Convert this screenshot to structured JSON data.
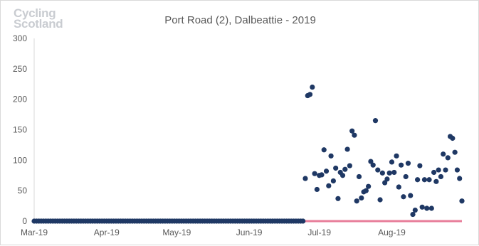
{
  "brand": {
    "line1": "Cycling",
    "line2": "Scotland"
  },
  "chart_data": {
    "type": "scatter",
    "title": "Port Road (2), Dalbeattie - 2019",
    "xlabel": "",
    "ylabel": "",
    "ylim": [
      0,
      300
    ],
    "yticks": [
      0,
      50,
      100,
      150,
      200,
      250,
      300
    ],
    "xlim": [
      "2019-03-01",
      "2019-08-31"
    ],
    "xticks": [
      {
        "date": "2019-03-01",
        "label": "Mar-19"
      },
      {
        "date": "2019-04-01",
        "label": "Apr-19"
      },
      {
        "date": "2019-05-01",
        "label": "May-19"
      },
      {
        "date": "2019-06-01",
        "label": "Jun-19"
      },
      {
        "date": "2019-07-01",
        "label": "Jul-19"
      },
      {
        "date": "2019-08-01",
        "label": "Aug-19"
      }
    ],
    "grid": false,
    "zero_days": {
      "start": "2019-03-01",
      "end": "2019-06-24",
      "value": 0
    },
    "series": [
      {
        "color": "#1f3864",
        "points": [
          {
            "date": "2019-06-25",
            "value": 70
          },
          {
            "date": "2019-06-26",
            "value": 206
          },
          {
            "date": "2019-06-27",
            "value": 208
          },
          {
            "date": "2019-06-28",
            "value": 220
          },
          {
            "date": "2019-06-29",
            "value": 78
          },
          {
            "date": "2019-06-30",
            "value": 52
          },
          {
            "date": "2019-07-01",
            "value": 75
          },
          {
            "date": "2019-07-02",
            "value": 76
          },
          {
            "date": "2019-07-03",
            "value": 117
          },
          {
            "date": "2019-07-04",
            "value": 82
          },
          {
            "date": "2019-07-05",
            "value": 58
          },
          {
            "date": "2019-07-06",
            "value": 107
          },
          {
            "date": "2019-07-07",
            "value": 66
          },
          {
            "date": "2019-07-08",
            "value": 87
          },
          {
            "date": "2019-07-09",
            "value": 37
          },
          {
            "date": "2019-07-10",
            "value": 80
          },
          {
            "date": "2019-07-11",
            "value": 75
          },
          {
            "date": "2019-07-12",
            "value": 85
          },
          {
            "date": "2019-07-13",
            "value": 118
          },
          {
            "date": "2019-07-14",
            "value": 91
          },
          {
            "date": "2019-07-15",
            "value": 148
          },
          {
            "date": "2019-07-16",
            "value": 141
          },
          {
            "date": "2019-07-17",
            "value": 33
          },
          {
            "date": "2019-07-18",
            "value": 73
          },
          {
            "date": "2019-07-19",
            "value": 38
          },
          {
            "date": "2019-07-20",
            "value": 48
          },
          {
            "date": "2019-07-21",
            "value": 50
          },
          {
            "date": "2019-07-22",
            "value": 57
          },
          {
            "date": "2019-07-23",
            "value": 98
          },
          {
            "date": "2019-07-24",
            "value": 92
          },
          {
            "date": "2019-07-25",
            "value": 165
          },
          {
            "date": "2019-07-26",
            "value": 84
          },
          {
            "date": "2019-07-27",
            "value": 35
          },
          {
            "date": "2019-07-28",
            "value": 79
          },
          {
            "date": "2019-07-29",
            "value": 63
          },
          {
            "date": "2019-07-30",
            "value": 69
          },
          {
            "date": "2019-07-31",
            "value": 79
          },
          {
            "date": "2019-08-01",
            "value": 97
          },
          {
            "date": "2019-08-02",
            "value": 80
          },
          {
            "date": "2019-08-03",
            "value": 107
          },
          {
            "date": "2019-08-04",
            "value": 56
          },
          {
            "date": "2019-08-05",
            "value": 92
          },
          {
            "date": "2019-08-06",
            "value": 40
          },
          {
            "date": "2019-08-07",
            "value": 73
          },
          {
            "date": "2019-08-08",
            "value": 95
          },
          {
            "date": "2019-08-09",
            "value": 42
          },
          {
            "date": "2019-08-10",
            "value": 11
          },
          {
            "date": "2019-08-11",
            "value": 18
          },
          {
            "date": "2019-08-12",
            "value": 68
          },
          {
            "date": "2019-08-13",
            "value": 91
          },
          {
            "date": "2019-08-14",
            "value": 23
          },
          {
            "date": "2019-08-15",
            "value": 68
          },
          {
            "date": "2019-08-16",
            "value": 21
          },
          {
            "date": "2019-08-17",
            "value": 68
          },
          {
            "date": "2019-08-18",
            "value": 21
          },
          {
            "date": "2019-08-19",
            "value": 80
          },
          {
            "date": "2019-08-20",
            "value": 65
          },
          {
            "date": "2019-08-21",
            "value": 84
          },
          {
            "date": "2019-08-22",
            "value": 73
          },
          {
            "date": "2019-08-23",
            "value": 110
          },
          {
            "date": "2019-08-24",
            "value": 84
          },
          {
            "date": "2019-08-25",
            "value": 104
          },
          {
            "date": "2019-08-26",
            "value": 139
          },
          {
            "date": "2019-08-27",
            "value": 136
          },
          {
            "date": "2019-08-28",
            "value": 113
          },
          {
            "date": "2019-08-29",
            "value": 84
          },
          {
            "date": "2019-08-30",
            "value": 70
          },
          {
            "date": "2019-08-31",
            "value": 33
          }
        ]
      }
    ],
    "baseline": {
      "color": "#e87d9a",
      "start": "2019-06-25",
      "end": "2019-08-31",
      "value": 0
    }
  }
}
